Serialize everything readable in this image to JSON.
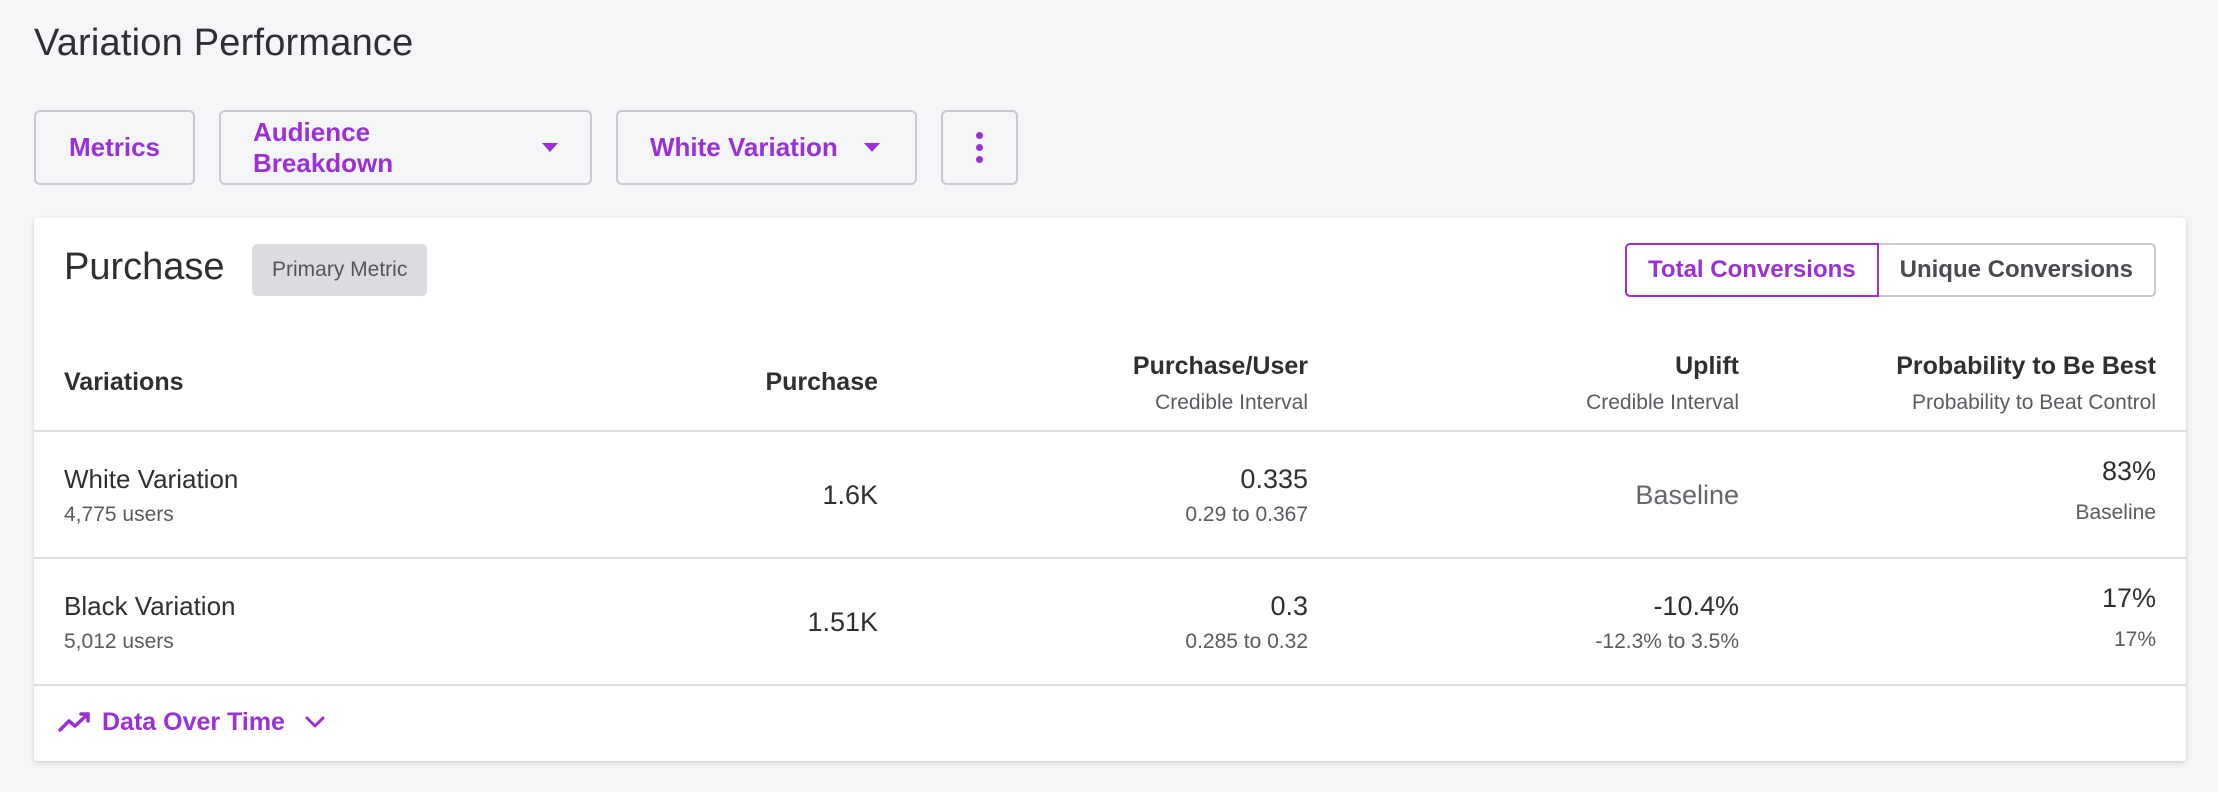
{
  "page": {
    "title": "Variation Performance"
  },
  "toolbar": {
    "metrics_label": "Metrics",
    "audience_label": "Audience Breakdown",
    "variation_label": "White Variation",
    "more_icon": "kebab-vertical-icon"
  },
  "card": {
    "title": "Purchase",
    "badge": "Primary Metric",
    "toggle": {
      "total": "Total Conversions",
      "unique": "Unique Conversions",
      "selected": "Total Conversions"
    }
  },
  "table": {
    "headers": {
      "variations": "Variations",
      "purchase": "Purchase",
      "purchase_user": "Purchase/User",
      "purchase_user_sub": "Credible Interval",
      "uplift": "Uplift",
      "uplift_sub": "Credible Interval",
      "prob_best": "Probability to Be Best",
      "prob_best_sub": "Probability to Beat Control"
    },
    "rows": [
      {
        "name": "White Variation",
        "users": "4,775 users",
        "purchase": "1.6K",
        "purchase_user": "0.335",
        "purchase_user_ci": "0.29 to 0.367",
        "uplift": "Baseline",
        "uplift_ci": "",
        "prob_best": "83%",
        "prob_beat": "Baseline"
      },
      {
        "name": "Black Variation",
        "users": "5,012 users",
        "purchase": "1.51K",
        "purchase_user": "0.3",
        "purchase_user_ci": "0.285 to 0.32",
        "uplift": "-10.4%",
        "uplift_ci": "-12.3% to 3.5%",
        "prob_best": "17%",
        "prob_beat": "17%"
      }
    ]
  },
  "footer": {
    "label": "Data Over Time",
    "icon": "trend-line-icon",
    "chevron": "chevron-down-icon"
  },
  "colors": {
    "accent": "#9b30d9",
    "background": "#f5f6f8",
    "card": "#ffffff",
    "border": "#c9c9cf"
  }
}
